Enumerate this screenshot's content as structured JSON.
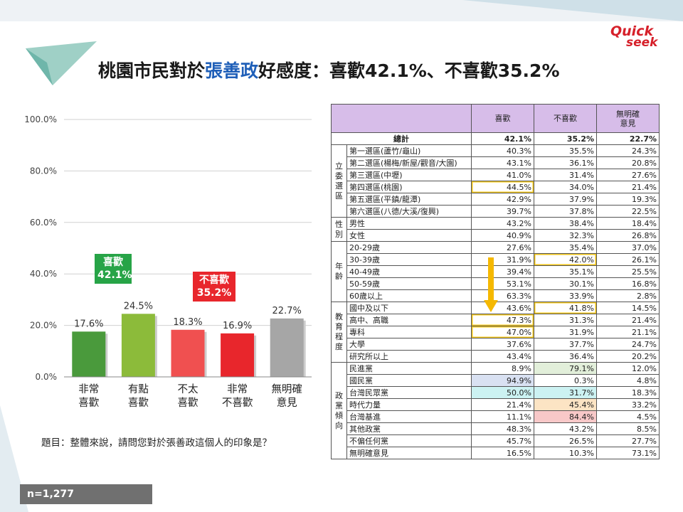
{
  "title": {
    "prefix": "桃園市民對於",
    "name": "張善政",
    "suffix": "好感度：喜歡42.1%、不喜歡35.2%"
  },
  "logo": {
    "line1": "Quick",
    "line2": "seek"
  },
  "chart_data": {
    "type": "bar",
    "categories": [
      "非常\n喜歡",
      "有點\n喜歡",
      "不太\n喜歡",
      "非常\n不喜歡",
      "無明確\n意見"
    ],
    "values": [
      17.6,
      24.5,
      18.3,
      16.9,
      22.7
    ],
    "value_labels": [
      "17.6%",
      "24.5%",
      "18.3%",
      "16.9%",
      "22.7%"
    ],
    "colors": [
      "#4a9a3c",
      "#8cbb3a",
      "#f05050",
      "#e8262c",
      "#a6a6a6"
    ],
    "ylim": [
      0,
      100
    ],
    "yticks": [
      "0.0%",
      "20.0%",
      "40.0%",
      "60.0%",
      "80.0%",
      "100.0%"
    ],
    "grid": true,
    "annotations": [
      {
        "label": "喜歡",
        "value": "42.1%",
        "color": "#27a447"
      },
      {
        "label": "不喜歡",
        "value": "35.2%",
        "color": "#e8262c"
      }
    ]
  },
  "question": "題目：整體來說，請問您對於張善政這個人的印象是？",
  "sample": "n=1,277",
  "table": {
    "headers": [
      "喜歡",
      "不喜歡",
      "無明確\n意見"
    ],
    "total": {
      "label": "總計",
      "values": [
        "42.1%",
        "35.2%",
        "22.7%"
      ]
    },
    "groups": [
      {
        "name": "立\n委\n選\n區",
        "rows": [
          {
            "label": "第一選區(蘆竹/龜山)",
            "values": [
              "40.3%",
              "35.5%",
              "24.3%"
            ]
          },
          {
            "label": "第二選區(楊梅/新屋/觀音/大園)",
            "values": [
              "43.1%",
              "36.1%",
              "20.8%"
            ]
          },
          {
            "label": "第三選區(中壢)",
            "values": [
              "41.0%",
              "31.4%",
              "27.6%"
            ]
          },
          {
            "label": "第四選區(桃園)",
            "values": [
              "44.5%",
              "34.0%",
              "21.4%"
            ],
            "hl": [
              0
            ]
          },
          {
            "label": "第五選區(平鎮/龍潭)",
            "values": [
              "42.9%",
              "37.9%",
              "19.3%"
            ]
          },
          {
            "label": "第六選區(八德/大溪/復興)",
            "values": [
              "39.7%",
              "37.8%",
              "22.5%"
            ]
          }
        ]
      },
      {
        "name": "性\n別",
        "rows": [
          {
            "label": "男性",
            "values": [
              "43.2%",
              "38.4%",
              "18.4%"
            ]
          },
          {
            "label": "女性",
            "values": [
              "40.9%",
              "32.3%",
              "26.8%"
            ]
          }
        ]
      },
      {
        "name": "年\n齡",
        "rows": [
          {
            "label": "20-29歲",
            "values": [
              "27.6%",
              "35.4%",
              "37.0%"
            ]
          },
          {
            "label": "30-39歲",
            "values": [
              "31.9%",
              "42.0%",
              "26.1%"
            ],
            "hl": [
              1
            ]
          },
          {
            "label": "40-49歲",
            "values": [
              "39.4%",
              "35.1%",
              "25.5%"
            ]
          },
          {
            "label": "50-59歲",
            "values": [
              "53.1%",
              "30.1%",
              "16.8%"
            ]
          },
          {
            "label": "60歲以上",
            "values": [
              "63.3%",
              "33.9%",
              "2.8%"
            ]
          }
        ]
      },
      {
        "name": "教\n育\n程\n度",
        "rows": [
          {
            "label": "國中及以下",
            "values": [
              "43.6%",
              "41.8%",
              "14.5%"
            ],
            "hl": [
              1
            ]
          },
          {
            "label": "高中、高職",
            "values": [
              "47.3%",
              "31.3%",
              "21.4%"
            ],
            "hl": [
              0
            ]
          },
          {
            "label": "專科",
            "values": [
              "47.0%",
              "31.9%",
              "21.1%"
            ],
            "hl": [
              0
            ]
          },
          {
            "label": "大學",
            "values": [
              "37.6%",
              "37.7%",
              "24.7%"
            ]
          },
          {
            "label": "研究所以上",
            "values": [
              "43.4%",
              "36.4%",
              "20.2%"
            ]
          }
        ]
      },
      {
        "name": "政\n黨\n傾\n向",
        "rows": [
          {
            "label": "民進黨",
            "values": [
              "8.9%",
              "79.1%",
              "12.0%"
            ],
            "bg": [
              "",
              "#e2efda",
              ""
            ]
          },
          {
            "label": "國民黨",
            "values": [
              "94.9%",
              "0.3%",
              "4.8%"
            ],
            "bg": [
              "#d9e1f2",
              "",
              ""
            ]
          },
          {
            "label": "台灣民眾黨",
            "values": [
              "50.0%",
              "31.7%",
              "18.3%"
            ],
            "bg": [
              "#ccf2f2",
              "#ccf2f2",
              ""
            ]
          },
          {
            "label": "時代力量",
            "values": [
              "21.4%",
              "45.4%",
              "33.2%"
            ],
            "bg": [
              "",
              "#fce4c4",
              ""
            ]
          },
          {
            "label": "台灣基進",
            "values": [
              "11.1%",
              "84.4%",
              "4.5%"
            ],
            "bg": [
              "",
              "#f8c8c8",
              ""
            ]
          },
          {
            "label": "其他政黨",
            "values": [
              "48.3%",
              "43.2%",
              "8.5%"
            ]
          },
          {
            "label": "不偏任何黨",
            "values": [
              "45.7%",
              "26.5%",
              "27.7%"
            ]
          },
          {
            "label": "無明確意見",
            "values": [
              "16.5%",
              "10.3%",
              "73.1%"
            ]
          }
        ]
      }
    ]
  }
}
